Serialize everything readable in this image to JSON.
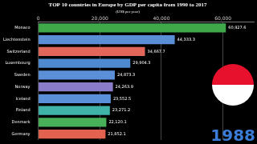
{
  "chart_data": {
    "type": "bar",
    "orientation": "horizontal",
    "title": "TOP 10 countries in Europe by GDP per capita from 1990 to 2017",
    "subtitle": "(US$ per year)",
    "annotations": [
      "1988"
    ],
    "categories": [
      "Monaco",
      "Liechtenstein",
      "Switzerland",
      "Luxembourg",
      "Sweden",
      "Norway",
      "Iceland",
      "Finland",
      "Denmark",
      "Germany"
    ],
    "values": [
      60927.6,
      44333.3,
      34667.7,
      29904.3,
      24873.3,
      24263.9,
      23552.5,
      23271.2,
      22120.1,
      21852.1
    ],
    "value_labels": [
      "60,927.6",
      "44,333.3",
      "34,667.7",
      "29,904.3",
      "24,873.3",
      "24,263.9",
      "23,552.5",
      "23,271.2",
      "22,120.1",
      "21,852.1"
    ],
    "colors": [
      "#3fa94a",
      "#5a8fd6",
      "#e0675a",
      "#4f8ad0",
      "#5b8fd8",
      "#8a7cc9",
      "#5a90d8",
      "#3fb3a8",
      "#49b05a",
      "#e0624f"
    ],
    "xlim": [
      0,
      70000
    ],
    "xticks": [
      0,
      {
        "value": 20000,
        "label": "20,000"
      },
      {
        "value": 40000,
        "label": "40,000"
      },
      {
        "value": 60000,
        "label": "60,000"
      }
    ],
    "grid": true,
    "data_labels": true
  }
}
